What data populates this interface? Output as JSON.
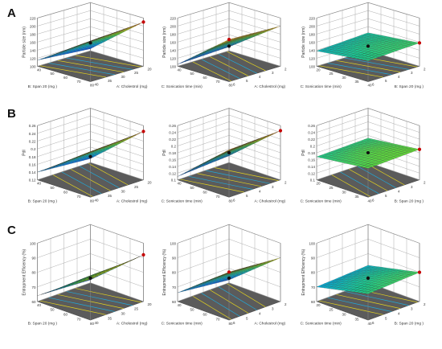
{
  "figure": {
    "row_labels": [
      "A",
      "B",
      "C"
    ]
  },
  "chart_data": [
    {
      "type": "surface3d",
      "panel": "A1",
      "zlabel": "Particle size (nm)",
      "xlabel": "A: Cholestrol (mg)",
      "ylabel": "B: Span 20 (mg )",
      "xlim": [
        40,
        80
      ],
      "ylim": [
        20,
        40
      ],
      "zlim": [
        100,
        220
      ],
      "xticks": [
        "40",
        "50",
        "60",
        "70",
        "80"
      ],
      "yticks": [
        "20",
        "25",
        "30",
        "35",
        "40"
      ],
      "zticks": [
        "100",
        "120",
        "140",
        "160",
        "180",
        "200",
        "220"
      ],
      "corner_z": {
        "x0y0": 105,
        "x1y0": 210,
        "x0y1": 115,
        "x1y1": 200
      },
      "center_point": [
        60,
        30,
        158
      ],
      "max_point": [
        80,
        20,
        210
      ]
    },
    {
      "type": "surface3d",
      "panel": "A2",
      "zlabel": "Particle size (nm)",
      "xlabel": "A: Cholestrol (mg)",
      "ylabel": "C: Sonication time (min)",
      "xlim": [
        40,
        80
      ],
      "ylim": [
        2,
        6
      ],
      "zlim": [
        100,
        220
      ],
      "xticks": [
        "40",
        "50",
        "60",
        "70",
        "80"
      ],
      "yticks": [
        "2",
        "3",
        "4",
        "5",
        "6"
      ],
      "zticks": [
        "100",
        "120",
        "140",
        "160",
        "180",
        "200",
        "220"
      ],
      "corner_z": {
        "x0y0": 110,
        "x1y0": 200,
        "x0y1": 105,
        "x1y1": 205
      },
      "center_point": [
        60,
        4,
        150
      ],
      "max_point": [
        80,
        6,
        205
      ]
    },
    {
      "type": "surface3d",
      "panel": "A3",
      "zlabel": "Particle size (nm)",
      "xlabel": "B: Span 20 (mg )",
      "ylabel": "C: Sonication time (min)",
      "xlim": [
        20,
        40
      ],
      "ylim": [
        2,
        6
      ],
      "zlim": [
        100,
        220
      ],
      "xticks": [
        "20",
        "25",
        "30",
        "35",
        "40"
      ],
      "yticks": [
        "2",
        "3",
        "4",
        "5",
        "6"
      ],
      "zticks": [
        "100",
        "120",
        "140",
        "160",
        "180",
        "200",
        "220"
      ],
      "corner_z": {
        "x0y0": 145,
        "x1y0": 158,
        "x0y1": 138,
        "x1y1": 152
      },
      "center_point": [
        30,
        4,
        150
      ],
      "max_point": [
        40,
        2,
        158
      ]
    },
    {
      "type": "surface3d",
      "panel": "B1",
      "zlabel": "PdI",
      "xlabel": "A: Cholestrol (mg)",
      "ylabel": "B: Span 20 (mg )",
      "xlim": [
        40,
        80
      ],
      "ylim": [
        20,
        40
      ],
      "zlim": [
        0.12,
        0.26
      ],
      "xticks": [
        "40",
        "50",
        "60",
        "70",
        "80"
      ],
      "yticks": [
        "20",
        "25",
        "30",
        "35",
        "40"
      ],
      "zticks": [
        "0.12",
        "0.14",
        "0.16",
        "0.18",
        "0.2",
        "0.22",
        "0.24",
        "0.26"
      ],
      "corner_z": {
        "x0y0": 0.13,
        "x1y0": 0.245,
        "x0y1": 0.14,
        "x1y1": 0.235
      },
      "center_point": [
        60,
        30,
        0.18
      ],
      "max_point": [
        80,
        20,
        0.245
      ]
    },
    {
      "type": "surface3d",
      "panel": "B2",
      "zlabel": "PdI",
      "xlabel": "A: Cholestrol (mg)",
      "ylabel": "C: Sonication time (min)",
      "xlim": [
        40,
        80
      ],
      "ylim": [
        2,
        6
      ],
      "zlim": [
        0.1,
        0.26
      ],
      "xticks": [
        "40",
        "50",
        "60",
        "70",
        "80"
      ],
      "yticks": [
        "2",
        "3",
        "4",
        "5",
        "6"
      ],
      "zticks": [
        "0.1",
        "0.12",
        "0.14",
        "0.16",
        "0.18",
        "0.2",
        "0.22",
        "0.24",
        "0.26"
      ],
      "corner_z": {
        "x0y0": 0.12,
        "x1y0": 0.245,
        "x0y1": 0.11,
        "x1y1": 0.24
      },
      "center_point": [
        60,
        4,
        0.18
      ],
      "max_point": [
        80,
        2,
        0.245
      ]
    },
    {
      "type": "surface3d",
      "panel": "B3",
      "zlabel": "PdI",
      "xlabel": "B: Span 20 (mg )",
      "ylabel": "C: Sonication time (min)",
      "xlim": [
        20,
        40
      ],
      "ylim": [
        2,
        6
      ],
      "zlim": [
        0.1,
        0.26
      ],
      "xticks": [
        "20",
        "25",
        "30",
        "35",
        "40"
      ],
      "yticks": [
        "2",
        "3",
        "4",
        "5",
        "6"
      ],
      "zticks": [
        "0.1",
        "0.12",
        "0.14",
        "0.16",
        "0.18",
        "0.2",
        "0.22",
        "0.24",
        "0.26"
      ],
      "corner_z": {
        "x0y0": 0.172,
        "x1y0": 0.19,
        "x0y1": 0.168,
        "x1y1": 0.185
      },
      "center_point": [
        30,
        4,
        0.18
      ],
      "max_point": [
        40,
        2,
        0.19
      ]
    },
    {
      "type": "surface3d",
      "panel": "C1",
      "zlabel": "Entrapment Efficiency (%)",
      "xlabel": "A: Cholestrol (mg)",
      "ylabel": "B: Span 20 (mg )",
      "xlim": [
        40,
        80
      ],
      "ylim": [
        20,
        40
      ],
      "zlim": [
        60,
        100
      ],
      "xticks": [
        "40",
        "50",
        "60",
        "70",
        "80"
      ],
      "yticks": [
        "20",
        "25",
        "30",
        "35",
        "40"
      ],
      "zticks": [
        "60",
        "70",
        "80",
        "90",
        "100"
      ],
      "corner_z": {
        "x0y0": 62,
        "x1y0": 92,
        "x0y1": 64,
        "x1y1": 88
      },
      "center_point": [
        60,
        30,
        76
      ],
      "max_point": [
        80,
        20,
        92
      ]
    },
    {
      "type": "surface3d",
      "panel": "C2",
      "zlabel": "Entrapment Efficiency (%)",
      "xlabel": "A: Cholestrol (mg)",
      "ylabel": "C: Sonication time (min)",
      "xlim": [
        40,
        80
      ],
      "ylim": [
        2,
        6
      ],
      "zlim": [
        60,
        100
      ],
      "xticks": [
        "40",
        "50",
        "60",
        "70",
        "80"
      ],
      "yticks": [
        "2",
        "3",
        "4",
        "5",
        "6"
      ],
      "zticks": [
        "60",
        "70",
        "80",
        "90",
        "100"
      ],
      "corner_z": {
        "x0y0": 62,
        "x1y0": 90,
        "x0y1": 66,
        "x1y1": 93
      },
      "center_point": [
        60,
        4,
        76
      ],
      "max_point": [
        80,
        6,
        93
      ]
    },
    {
      "type": "surface3d",
      "panel": "C3",
      "zlabel": "Entrapment Efficiency (%)",
      "xlabel": "B: Span 20 (mg )",
      "ylabel": "C: Sonication time (min)",
      "xlim": [
        20,
        40
      ],
      "ylim": [
        2,
        6
      ],
      "zlim": [
        60,
        100
      ],
      "xticks": [
        "20",
        "25",
        "30",
        "35",
        "40"
      ],
      "yticks": [
        "2",
        "3",
        "4",
        "5",
        "6"
      ],
      "zticks": [
        "60",
        "70",
        "80",
        "90",
        "100"
      ],
      "corner_z": {
        "x0y0": 72,
        "x1y0": 80,
        "x0y1": 70,
        "x1y1": 78
      },
      "center_point": [
        30,
        4,
        76
      ],
      "max_point": [
        40,
        2,
        80
      ]
    }
  ]
}
